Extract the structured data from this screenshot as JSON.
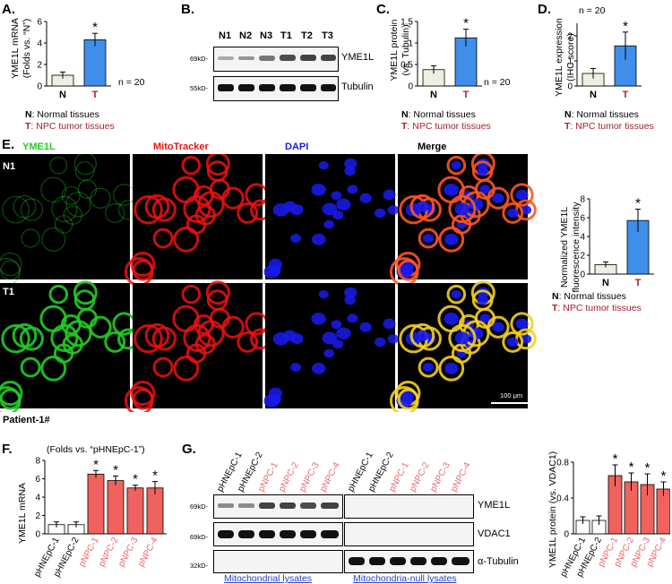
{
  "panels": {
    "A": {
      "label": "A.",
      "ylabel_line1": "YME1L mRNA",
      "ylabel_line2": "(Folds vs. “N”)",
      "n_note": "n = 20",
      "legend_n_key": "N",
      "legend_n_text": ": Normal tissues",
      "legend_t_key": "T",
      "legend_t_text": ": NPC tumor tissues"
    },
    "B": {
      "label": "B.",
      "lanes": [
        "N1",
        "N2",
        "N3",
        "T1",
        "T2",
        "T3"
      ],
      "mw_top": "69kD-",
      "mw_bottom": "55kD-",
      "band_top": "YME1L",
      "band_bottom": "Tubulin"
    },
    "C": {
      "label": "C.",
      "ylabel_line1": "YME1L protein",
      "ylabel_line2": "(vs. Tubulin)",
      "n_note": "n = 20",
      "legend_n_key": "N",
      "legend_n_text": ": Normal tissues",
      "legend_t_key": "T",
      "legend_t_text": ": NPC tumor tissues"
    },
    "D": {
      "label": "D.",
      "ylabel_line1": "YME1L expression",
      "ylabel_line2": "(IHC score)",
      "n_note": "n = 20",
      "legend_n_key": "N",
      "legend_n_text": ": Normal tissues",
      "legend_t_key": "T",
      "legend_t_text": ": NPC tumor tissues"
    },
    "E": {
      "label": "E.",
      "col_yme1l": "YME1L",
      "col_mito": "MitoTracker",
      "col_dapi": "DAPI",
      "col_merge": "Merge",
      "row_n1": "N1",
      "row_t1": "T1",
      "scale_bar": "100 μm",
      "patient": "Patient-1#",
      "ylabel_line1": "Normalized YME1L",
      "ylabel_line2": "fluorescence intensity",
      "legend_n_key": "N",
      "legend_n_text": ": Normal tissues",
      "legend_t_key": "T",
      "legend_t_text": ": NPC tumor tissues"
    },
    "F": {
      "label": "F.",
      "note": "(Folds vs. “pHNEpC-1”)",
      "ylabel": "YME1L mRNA"
    },
    "G": {
      "label": "G.",
      "lanes": [
        "pHNEpC-1",
        "pHNEpC-2",
        "pNPC-1",
        "pNPC-2",
        "pNPC-3",
        "pNPC-4",
        "pHNEpC-1",
        "pHNEpC-2",
        "pNPC-1",
        "pNPC-2",
        "pNPC-3",
        "pNPC-4"
      ],
      "mw_1": "69kD-",
      "mw_2": "69kD-",
      "mw_3": "32kD-",
      "band_1": "YME1L",
      "band_2": "VDAC1",
      "band_3": "α-Tubulin",
      "lysate_mito": "Mitochondrial lysates",
      "lysate_null": "Mitochondria-null lysates",
      "ylabel": "YME1L protein (vs. VDAC1)"
    }
  },
  "colors": {
    "normal_bar": "#efeee2",
    "tumor_bar": "#3e8eea",
    "pnpc_bar": "#f0625e",
    "red_text": "#a5222b",
    "pink_text": "#e8666a",
    "blue_text": "#1f3fcf",
    "green": "#22cc22",
    "red_fluor": "#ee1111",
    "blue_fluor": "#1a1aee"
  },
  "chart_data": [
    {
      "id": "A",
      "type": "bar",
      "categories": [
        "N",
        "T"
      ],
      "values": [
        1.0,
        4.3
      ],
      "errors": [
        0.3,
        0.6
      ],
      "significant": [
        "",
        "*"
      ],
      "ylim": [
        0,
        6
      ],
      "yticks": [
        0,
        2,
        4,
        6
      ]
    },
    {
      "id": "C",
      "type": "bar",
      "categories": [
        "N",
        "T"
      ],
      "values": [
        0.38,
        1.12
      ],
      "errors": [
        0.09,
        0.2
      ],
      "significant": [
        "",
        "*"
      ],
      "ylim": [
        0,
        1.5
      ],
      "yticks": [
        0,
        0.5,
        1,
        1.5
      ],
      "ytick_labels": [
        "0",
        "0.5",
        "1",
        "1.5"
      ]
    },
    {
      "id": "D",
      "type": "bar",
      "categories": [
        "N",
        "T"
      ],
      "values": [
        0.5,
        1.6
      ],
      "errors": [
        0.2,
        0.55
      ],
      "significant": [
        "",
        "*"
      ],
      "ylim": [
        0,
        2.5
      ],
      "yticks": [
        0,
        1,
        2
      ]
    },
    {
      "id": "E",
      "type": "bar",
      "categories": [
        "N",
        "T"
      ],
      "values": [
        1.0,
        5.7
      ],
      "errors": [
        0.3,
        1.2
      ],
      "significant": [
        "",
        "*"
      ],
      "ylim": [
        0,
        8
      ],
      "yticks": [
        0,
        2,
        4,
        6,
        8
      ]
    },
    {
      "id": "F",
      "type": "bar",
      "categories": [
        "pHNEpC-1",
        "pHNEpC-2",
        "pNPC-1",
        "pNPC-2",
        "pNPC-3",
        "pNPC-4"
      ],
      "values": [
        1.0,
        1.0,
        6.5,
        5.8,
        5.0,
        5.0
      ],
      "errors": [
        0.3,
        0.3,
        0.4,
        0.5,
        0.3,
        0.7
      ],
      "significant": [
        "",
        "",
        "*",
        "*",
        "*",
        "*"
      ],
      "ylim": [
        0,
        8
      ],
      "yticks": [
        0,
        2,
        4,
        6,
        8
      ]
    },
    {
      "id": "G",
      "type": "bar",
      "categories": [
        "pHNEpC-1",
        "pHNEpC-2",
        "pNPC-1",
        "pNPC-2",
        "pNPC-3",
        "pNPC-4"
      ],
      "values": [
        0.15,
        0.15,
        0.65,
        0.58,
        0.55,
        0.5
      ],
      "errors": [
        0.04,
        0.05,
        0.12,
        0.1,
        0.12,
        0.08
      ],
      "significant": [
        "",
        "",
        "*",
        "*",
        "*",
        "*"
      ],
      "ylim": [
        0,
        0.8
      ],
      "yticks": [
        0,
        0.4,
        0.8
      ]
    }
  ]
}
